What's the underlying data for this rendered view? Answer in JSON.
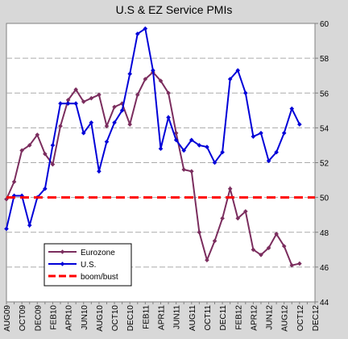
{
  "chart_data": {
    "type": "line",
    "title": "U.S & EZ Service PMIs",
    "xlabel": "",
    "ylabel": "",
    "ylim": [
      44,
      60
    ],
    "yticks": [
      44,
      46,
      48,
      50,
      52,
      54,
      56,
      58,
      60
    ],
    "y_axis_side": "right",
    "grid": true,
    "legend_position": "bottom-left",
    "x_tick_labels": [
      "AUG09",
      "OCT09",
      "DEC09",
      "FEB10",
      "APR10",
      "JUN10",
      "AUG10",
      "OCT10",
      "DEC10",
      "FEB11",
      "APR11",
      "JUN11",
      "AUG11",
      "OCT11",
      "DEC11",
      "FEB12",
      "APR12",
      "JUN12",
      "AUG12",
      "OCT12",
      "DEC12"
    ],
    "x_months_total": 41,
    "series": [
      {
        "name": "Eurozone",
        "color": "#7b2d5e",
        "marker": "diamond",
        "values": [
          49.9,
          50.9,
          52.7,
          53.0,
          53.6,
          52.5,
          51.9,
          54.1,
          55.6,
          56.2,
          55.5,
          55.7,
          55.9,
          54.1,
          55.2,
          55.4,
          54.2,
          55.9,
          56.8,
          57.2,
          56.7,
          56.0,
          53.7,
          51.6,
          51.5,
          48.0,
          46.4,
          47.5,
          48.8,
          50.5,
          48.8,
          49.2,
          47.0,
          46.7,
          47.1,
          47.9,
          47.2,
          46.1,
          46.2
        ]
      },
      {
        "name": "U.S.",
        "color": "#0000d8",
        "marker": "diamond",
        "values": [
          48.2,
          50.1,
          50.1,
          48.4,
          50.0,
          50.5,
          53.0,
          55.4,
          55.4,
          55.4,
          53.7,
          54.3,
          51.5,
          53.2,
          54.3,
          55.0,
          57.1,
          59.4,
          59.7,
          57.3,
          52.8,
          54.6,
          53.3,
          52.7,
          53.3,
          53.0,
          52.9,
          52.0,
          52.6,
          56.8,
          57.3,
          56.0,
          53.5,
          53.7,
          52.1,
          52.6,
          53.7,
          55.1,
          54.2
        ]
      },
      {
        "name": "boom/bust",
        "color": "#ff0000",
        "style": "dashed",
        "values": [
          50,
          50
        ]
      }
    ]
  }
}
